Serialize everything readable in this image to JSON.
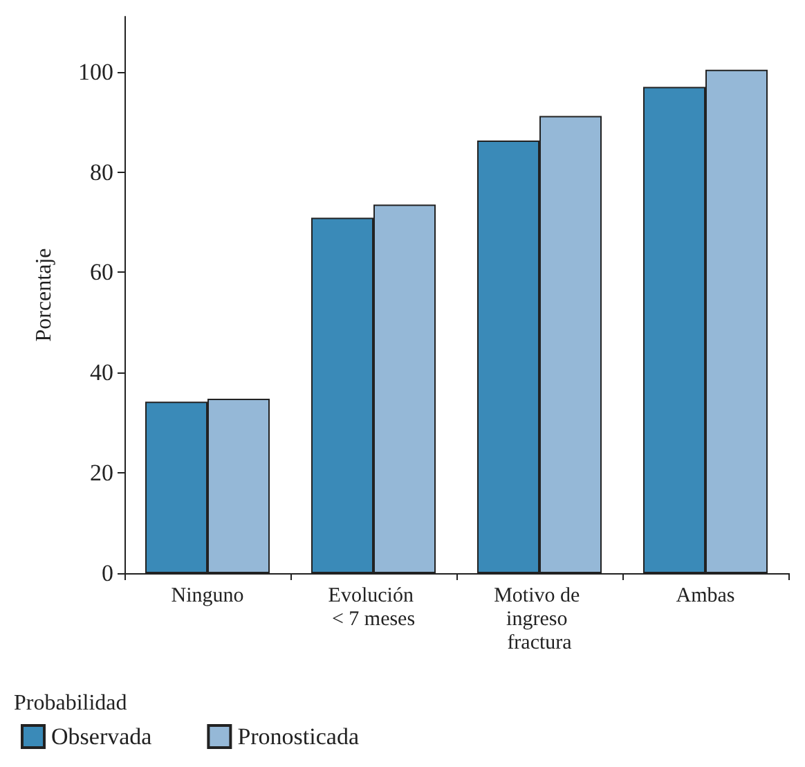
{
  "chart_data": {
    "type": "bar",
    "ylabel": "Porcentaje",
    "legend_title": "Probabilidad",
    "categories": [
      "Ninguno",
      "Evolución < 7 meses",
      "Motivo de ingreso fractura",
      "Ambas"
    ],
    "series": [
      {
        "name": "Observada",
        "color": "#3a8ab8",
        "values": [
          34.2,
          70.9,
          86.3,
          97.0
        ]
      },
      {
        "name": "Pronosticada",
        "color": "#95b8d7",
        "values": [
          34.8,
          73.5,
          91.2,
          100.4
        ]
      }
    ],
    "ylim": [
      0,
      111
    ],
    "yticks": [
      0,
      20,
      40,
      60,
      80,
      100
    ],
    "grid": false,
    "legend": "bottom left"
  }
}
